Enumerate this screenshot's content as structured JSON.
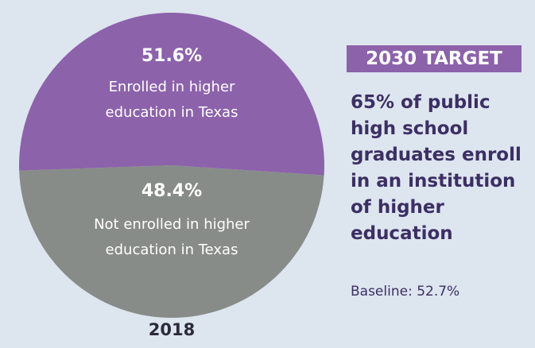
{
  "chart_data": {
    "type": "pie",
    "categories": [
      "Enrolled in higher education in Texas",
      "Not enrolled in higher education in Texas"
    ],
    "values": [
      51.6,
      48.4
    ],
    "value_labels": [
      "51.6%",
      "48.4%"
    ],
    "colors": [
      "#8c62ab",
      "#878c88"
    ],
    "caption": "2018",
    "target_label": "2030 TARGET",
    "target_text": "65% of public high school graduates enroll in an institution of higher education",
    "baseline": "Baseline: 52.7%"
  }
}
